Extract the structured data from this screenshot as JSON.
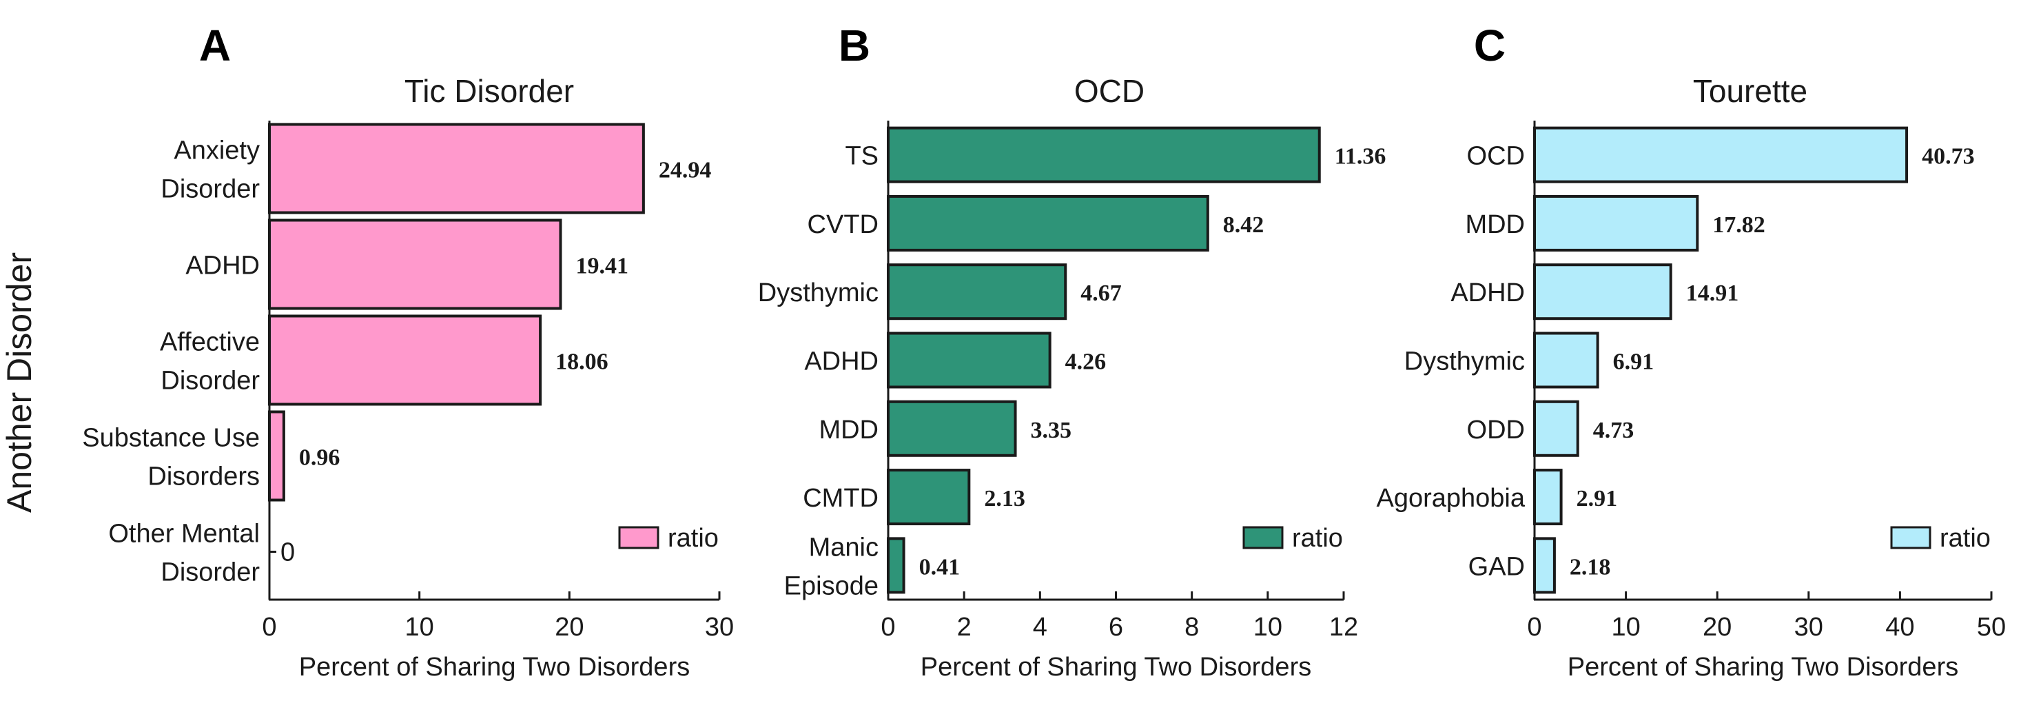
{
  "y_axis_label": "Another Disorder",
  "colors": {
    "A": "#ff99cc",
    "B": "#2e9478",
    "C": "#b3ecfb",
    "stroke": "#1a1a1a"
  },
  "chart_data": [
    {
      "panel": "A",
      "type": "bar",
      "orientation": "horizontal",
      "title": "Tic Disorder",
      "xlabel": "Percent of Sharing Two Disorders",
      "ylabel": "Another Disorder",
      "xlim": [
        0,
        30
      ],
      "xticks": [
        "0",
        "10",
        "20",
        "30"
      ],
      "categories": [
        [
          "Anxiety",
          "Disorder"
        ],
        [
          "ADHD"
        ],
        [
          "Affective",
          "Disorder"
        ],
        [
          "Substance Use",
          "Disorders"
        ],
        [
          "Other Mental",
          "Disorder"
        ]
      ],
      "values": [
        24.94,
        19.41,
        18.06,
        0.96,
        0
      ],
      "value_labels": [
        "24.94",
        "19.41",
        "18.06",
        "0.96",
        "0"
      ],
      "legend": "ratio",
      "legend_position": "bottom-right"
    },
    {
      "panel": "B",
      "type": "bar",
      "orientation": "horizontal",
      "title": "OCD",
      "xlabel": "Percent of Sharing Two Disorders",
      "xlim": [
        0,
        12
      ],
      "xticks": [
        "0",
        "2",
        "4",
        "6",
        "8",
        "10",
        "12"
      ],
      "categories": [
        [
          "TS"
        ],
        [
          "CVTD"
        ],
        [
          "Dysthymic"
        ],
        [
          "ADHD"
        ],
        [
          "MDD"
        ],
        [
          "CMTD"
        ],
        [
          "Manic",
          "Episode"
        ]
      ],
      "values": [
        11.36,
        8.42,
        4.67,
        4.26,
        3.35,
        2.13,
        0.41
      ],
      "value_labels": [
        "11.36",
        "8.42",
        "4.67",
        "4.26",
        "3.35",
        "2.13",
        "0.41"
      ],
      "legend": "ratio",
      "legend_position": "bottom-right"
    },
    {
      "panel": "C",
      "type": "bar",
      "orientation": "horizontal",
      "title": "Tourette",
      "xlabel": "Percent of Sharing Two Disorders",
      "xlim": [
        0,
        50
      ],
      "xticks": [
        "0",
        "10",
        "20",
        "30",
        "40",
        "50"
      ],
      "categories": [
        [
          "OCD"
        ],
        [
          "MDD"
        ],
        [
          "ADHD"
        ],
        [
          "Dysthymic"
        ],
        [
          "ODD"
        ],
        [
          "Agoraphobia"
        ],
        [
          "GAD"
        ]
      ],
      "values": [
        40.73,
        17.82,
        14.91,
        6.91,
        4.73,
        2.91,
        2.18
      ],
      "value_labels": [
        "40.73",
        "17.82",
        "14.91",
        "6.91",
        "4.73",
        "2.91",
        "2.18"
      ],
      "legend": "ratio",
      "legend_position": "bottom-right"
    }
  ]
}
